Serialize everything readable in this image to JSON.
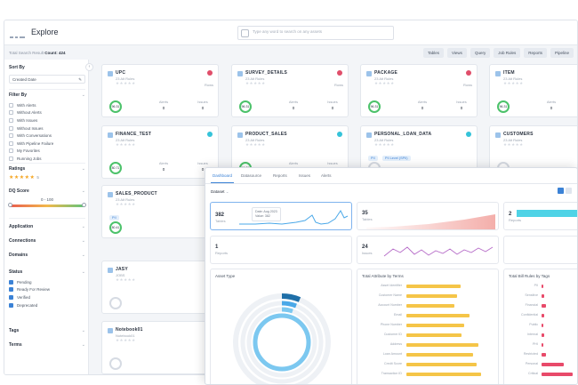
{
  "window": {
    "title": "Explore"
  },
  "search": {
    "placeholder": "Type any word to search on any assets"
  },
  "result": {
    "label": "Total Search Result",
    "count_label": "Count: 424"
  },
  "chips": [
    "Tables",
    "Views",
    "Query",
    "Job Rules",
    "Reports",
    "Pipeline"
  ],
  "sidebar": {
    "sort_by": {
      "title": "Sort By",
      "value": "Created Date"
    },
    "filter_by": {
      "title": "Filter By",
      "options": [
        "With Alerts",
        "Without Alerts",
        "With Issues",
        "Without Issues",
        "With Conversations",
        "With Pipeline Failure",
        "My Favorites",
        "Running Jobs"
      ]
    },
    "ratings": {
      "title": "Ratings",
      "stars": "★★★★★",
      "count": "5"
    },
    "dq_score": {
      "title": "DQ Score",
      "range": "0 - 100"
    },
    "sections": [
      "Application",
      "Connections",
      "Domains"
    ],
    "status": {
      "title": "Status",
      "options": [
        "Pending",
        "Ready For Review",
        "Verified",
        "Deprecated"
      ]
    },
    "tail_sections": [
      "Tags",
      "Terms"
    ]
  },
  "cards": [
    {
      "name": "UPC",
      "sub": "23 Alt Rules",
      "rows_label": "Rows",
      "rows": "",
      "score": "96.31",
      "alerts_label": "Alerts",
      "alerts": "0",
      "issues_label": "Issues",
      "issues": "0",
      "badge": "#e04e6a"
    },
    {
      "name": "SURVEY_DETAILS",
      "sub": "23 Alt Rules",
      "rows_label": "Rows",
      "rows": "",
      "score": "96.31",
      "alerts_label": "Alerts",
      "alerts": "0",
      "issues_label": "Issues",
      "issues": "0",
      "badge": "#e04e6a"
    },
    {
      "name": "PACKAGE",
      "sub": "23 Alt Rules",
      "rows_label": "Rows",
      "rows": "",
      "score": "96.31",
      "alerts_label": "Alerts",
      "alerts": "0",
      "issues_label": "Issues",
      "issues": "0",
      "badge": "#e04e6a"
    },
    {
      "name": "ITEM",
      "sub": "23 Alt Rules",
      "rows_label": "Rows",
      "rows": "",
      "score": "96.31",
      "alerts_label": "Alerts",
      "alerts": "0",
      "issues_label": "Issues",
      "issues": "0",
      "badge": "#e04e6a"
    },
    {
      "name": "FINANCE_TEST",
      "sub": "23 Alt Rules",
      "rows_label": "",
      "rows": "",
      "score": "80.71",
      "alerts_label": "Alerts",
      "alerts": "0",
      "issues_label": "Issues",
      "issues": "0",
      "badge": "#35c3d9"
    },
    {
      "name": "PRODUCT_SALES",
      "sub": "23 Alt Rules",
      "rows_label": "",
      "rows": "",
      "score": "96.31",
      "alerts_label": "Alerts",
      "alerts": "0",
      "issues_label": "Issues",
      "issues": "0",
      "badge": "#35c3d9"
    },
    {
      "name": "PERSONAL_LOAN_DATA",
      "sub": "23 Alt Rules",
      "rows_label": "",
      "rows": "",
      "score": "",
      "alerts_label": "",
      "alerts": "",
      "issues_label": "",
      "issues": "",
      "badge": "#35c3d9",
      "tags": [
        "PII",
        "PII Level (SPII)"
      ]
    },
    {
      "name": "CUSTOMERS",
      "sub": "23 Alt Rules",
      "rows_label": "",
      "rows": "",
      "score": "",
      "alerts_label": "",
      "alerts": "",
      "issues_label": "",
      "issues": "",
      "badge": "#35c3d9"
    },
    {
      "name": "SALES_PRODUCT",
      "sub": "23 Alt Rules",
      "score": "80.41",
      "tags": [
        "PII"
      ]
    },
    {
      "name": "JASY",
      "sub": "JOBS",
      "score": ""
    },
    {
      "name": "Notebook01",
      "sub": "Notebook01",
      "score": ""
    }
  ],
  "dashboard": {
    "tabs": [
      "Dashboard",
      "Datasource",
      "Reports",
      "Issues",
      "Alerts"
    ],
    "selector": "Dataset",
    "kpis": [
      {
        "value": "382",
        "label": "Tables"
      },
      {
        "value": "35",
        "label": "Tables"
      },
      {
        "value": "2",
        "label": "Reports"
      },
      {
        "value": "1",
        "label": "Reports"
      },
      {
        "value": "24",
        "label": "Issues"
      }
    ],
    "tooltip": [
      "Date: Aug 2023",
      "Value: 382"
    ],
    "panels": {
      "asset_type": "Asset Type",
      "by_terms": "Total Attribute by Terms",
      "by_tags": "Total Bill Rules by Tags"
    },
    "term_labels": [
      "Asset Identifier",
      "Customer Name",
      "Account Number",
      "Email",
      "Phone Number",
      "Customer ID",
      "Address",
      "Loan Amount",
      "Credit Score",
      "Transaction ID"
    ],
    "term_values": [
      45,
      42,
      40,
      52,
      48,
      46,
      60,
      55,
      58,
      62
    ],
    "tag_labels": [
      "PII",
      "Sensitive",
      "Financial",
      "Confidential",
      "Public",
      "Internal",
      "PHI",
      "Restricted",
      "Personal",
      "Critical"
    ],
    "tag_values": [
      2,
      3,
      4,
      3,
      2,
      3,
      2,
      4,
      22,
      30
    ],
    "colors": {
      "accent": "#3b82d6",
      "bar_yellow": "#f5c548",
      "bar_pink": "#e84a6a",
      "line_blue": "#4aa8e8",
      "area_red": "#ef8c86",
      "area_cyan": "#4fd3e6",
      "ring_dark": "#1f6fa8",
      "ring_light": "#7cc8f0"
    }
  }
}
